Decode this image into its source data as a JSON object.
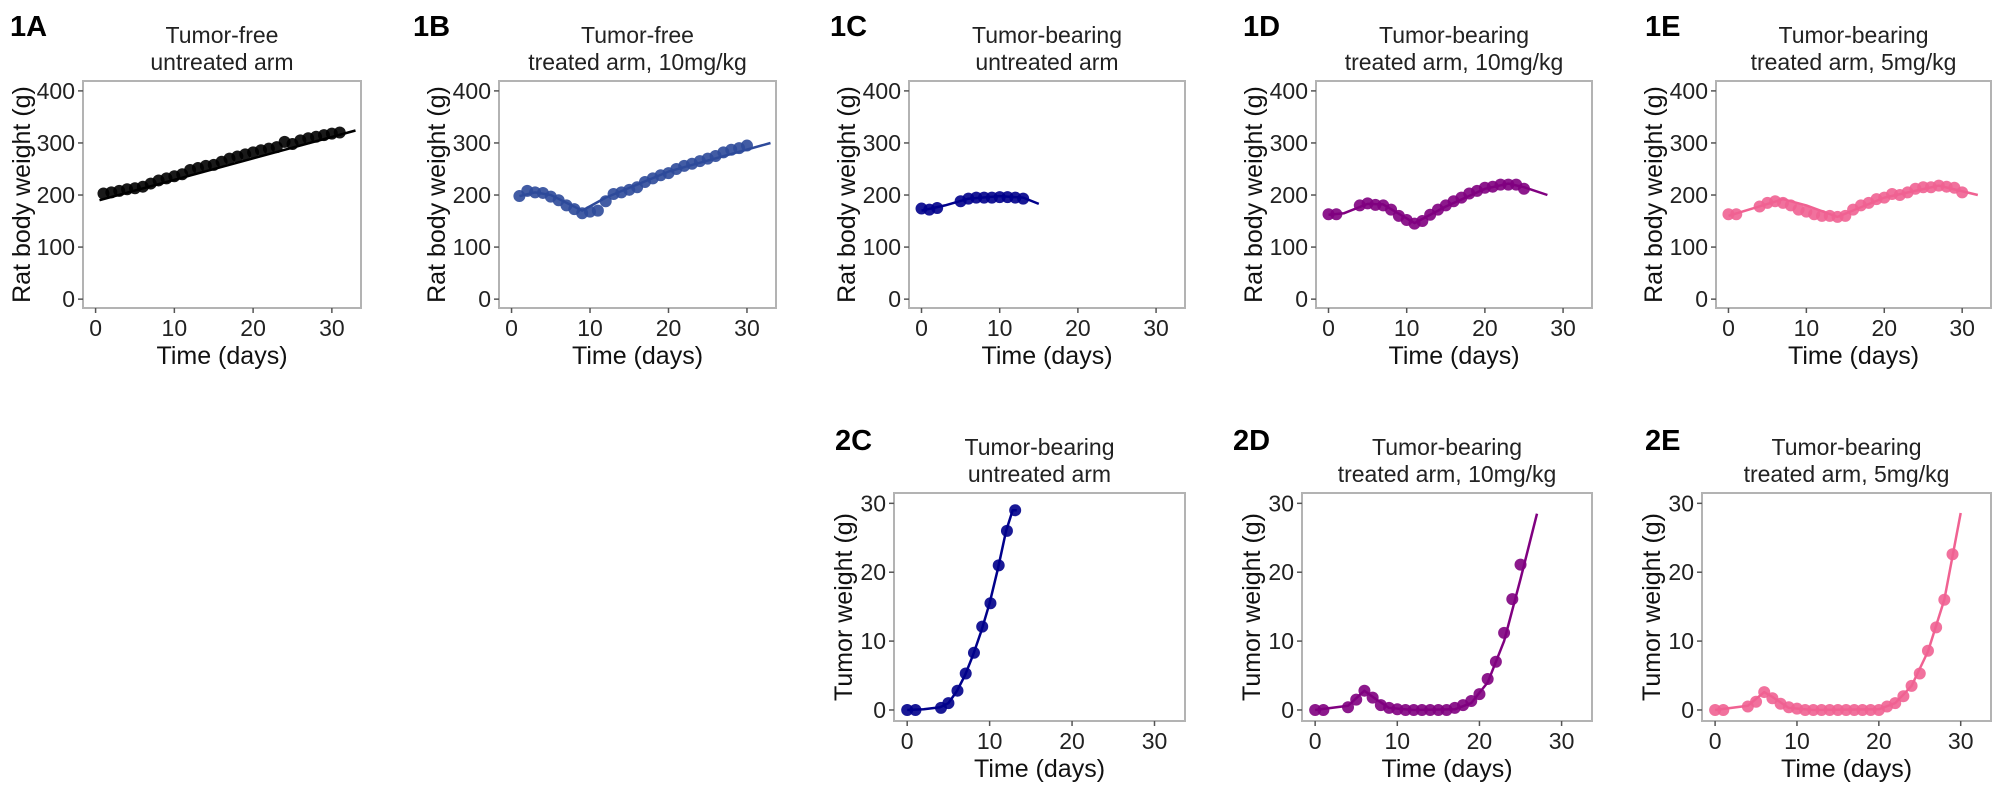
{
  "chart_data": [
    {
      "panel": "1A",
      "type": "scatter",
      "title_lines": [
        "Tumor-free",
        "untreated arm"
      ],
      "xlabel": "Time (days)",
      "ylabel": "Rat body weight (g)",
      "xlim": [
        -1.6,
        33.7
      ],
      "ylim": [
        -17,
        419
      ],
      "xticks": [
        0,
        10,
        20,
        30
      ],
      "yticks": [
        0,
        100,
        200,
        300,
        400
      ],
      "grid": false,
      "color": "#000000",
      "points": {
        "x": [
          1,
          2,
          3,
          4,
          5,
          6,
          7,
          8,
          9,
          10,
          11,
          12,
          13,
          14,
          15,
          16,
          17,
          18,
          19,
          20,
          21,
          22,
          23,
          24,
          25,
          26,
          27,
          28,
          29,
          30,
          31
        ],
        "y": [
          203,
          205,
          208,
          211,
          213,
          216,
          222,
          228,
          232,
          236,
          240,
          248,
          252,
          256,
          258,
          264,
          270,
          274,
          278,
          282,
          286,
          289,
          292,
          302,
          298,
          305,
          309,
          312,
          315,
          318,
          320
        ]
      },
      "fit": {
        "x": [
          0.5,
          33
        ],
        "y": [
          190,
          324
        ]
      }
    },
    {
      "panel": "1B",
      "type": "scatter",
      "title_lines": [
        "Tumor-free",
        "treated arm, 10mg/kg"
      ],
      "xlabel": "Time (days)",
      "ylabel": "Rat body weight (g)",
      "xlim": [
        -1.6,
        33.7
      ],
      "ylim": [
        -17,
        419
      ],
      "xticks": [
        0,
        10,
        20,
        30
      ],
      "yticks": [
        0,
        100,
        200,
        300,
        400
      ],
      "grid": false,
      "color": "#2E4A9A",
      "points": {
        "x": [
          1,
          2,
          3,
          4,
          5,
          6,
          7,
          8,
          9,
          10,
          11,
          12,
          13,
          14,
          15,
          16,
          17,
          18,
          19,
          20,
          21,
          22,
          23,
          24,
          25,
          26,
          27,
          28,
          29,
          30
        ],
        "y": [
          198,
          208,
          205,
          204,
          197,
          190,
          180,
          173,
          165,
          168,
          170,
          188,
          202,
          205,
          210,
          215,
          225,
          232,
          238,
          242,
          250,
          256,
          260,
          265,
          270,
          275,
          282,
          287,
          290,
          295
        ]
      },
      "fit": {
        "x": [
          1,
          3,
          5,
          9,
          12,
          20,
          33
        ],
        "y": [
          198,
          205,
          200,
          170,
          195,
          245,
          300
        ]
      }
    },
    {
      "panel": "1C",
      "type": "scatter",
      "title_lines": [
        "Tumor-bearing",
        "untreated arm"
      ],
      "xlabel": "Time (days)",
      "ylabel": "Rat body weight (g)",
      "xlim": [
        -1.6,
        33.7
      ],
      "ylim": [
        -17,
        419
      ],
      "xticks": [
        0,
        10,
        20,
        30
      ],
      "yticks": [
        0,
        100,
        200,
        300,
        400
      ],
      "grid": false,
      "color": "#00008B",
      "points": {
        "x": [
          0,
          1,
          2,
          5,
          6,
          7,
          8,
          9,
          10,
          11,
          12,
          13
        ],
        "y": [
          174,
          172,
          175,
          188,
          193,
          195,
          195,
          195,
          196,
          196,
          195,
          193
        ]
      },
      "fit": {
        "x": [
          0,
          3,
          6,
          10,
          13,
          15
        ],
        "y": [
          170,
          180,
          193,
          198,
          195,
          183
        ]
      }
    },
    {
      "panel": "1D",
      "type": "scatter",
      "title_lines": [
        "Tumor-bearing",
        "treated arm, 10mg/kg"
      ],
      "xlabel": "Time (days)",
      "ylabel": "Rat body weight (g)",
      "xlim": [
        -1.6,
        33.7
      ],
      "ylim": [
        -17,
        419
      ],
      "xticks": [
        0,
        10,
        20,
        30
      ],
      "yticks": [
        0,
        100,
        200,
        300,
        400
      ],
      "grid": false,
      "color": "#800080",
      "points": {
        "x": [
          0,
          1,
          4,
          5,
          6,
          7,
          8,
          9,
          10,
          11,
          12,
          13,
          14,
          15,
          16,
          17,
          18,
          19,
          20,
          21,
          22,
          23,
          24,
          25
        ],
        "y": [
          163,
          163,
          180,
          184,
          181,
          180,
          172,
          160,
          152,
          145,
          150,
          162,
          172,
          180,
          188,
          195,
          203,
          208,
          214,
          216,
          220,
          220,
          220,
          212
        ]
      },
      "fit": {
        "x": [
          0,
          2,
          5,
          7,
          11,
          15,
          20,
          23,
          25,
          28
        ],
        "y": [
          162,
          165,
          183,
          182,
          146,
          178,
          212,
          222,
          215,
          200
        ]
      }
    },
    {
      "panel": "1E",
      "type": "scatter",
      "title_lines": [
        "Tumor-bearing",
        "treated arm, 5mg/kg"
      ],
      "xlabel": "Time (days)",
      "ylabel": "Rat body weight (g)",
      "xlim": [
        -1.6,
        33.7
      ],
      "ylim": [
        -17,
        419
      ],
      "xticks": [
        0,
        10,
        20,
        30
      ],
      "yticks": [
        0,
        100,
        200,
        300,
        400
      ],
      "grid": false,
      "color": "#F06292",
      "points": {
        "x": [
          0,
          1,
          4,
          5,
          6,
          7,
          8,
          9,
          10,
          11,
          12,
          13,
          14,
          15,
          16,
          17,
          18,
          19,
          20,
          21,
          22,
          23,
          24,
          25,
          26,
          27,
          28,
          29,
          30
        ],
        "y": [
          163,
          163,
          178,
          185,
          188,
          185,
          180,
          172,
          168,
          163,
          160,
          160,
          158,
          160,
          172,
          180,
          185,
          192,
          195,
          202,
          200,
          205,
          212,
          215,
          215,
          218,
          216,
          214,
          205
        ]
      },
      "fit": {
        "x": [
          0,
          7,
          10,
          14,
          20,
          27,
          32
        ],
        "y": [
          160,
          192,
          180,
          158,
          195,
          218,
          200
        ]
      }
    },
    {
      "panel": "2C",
      "type": "scatter",
      "title_lines": [
        "Tumor-bearing",
        "untreated arm"
      ],
      "xlabel": "Time (days)",
      "ylabel": "Tumor weight (g)",
      "xlim": [
        -1.6,
        33.7
      ],
      "ylim": [
        -1.6,
        31.5
      ],
      "xticks": [
        0,
        10,
        20,
        30
      ],
      "yticks": [
        0,
        10,
        20,
        30
      ],
      "grid": false,
      "color": "#00008B",
      "points": {
        "x": [
          0,
          1,
          4.1,
          5,
          6.1,
          7.1,
          8.1,
          9.1,
          10.1,
          11.1,
          12.1,
          13.1
        ],
        "y": [
          0,
          0,
          0.3,
          1,
          2.8,
          5.3,
          8.3,
          12.1,
          15.5,
          21,
          26,
          29
        ]
      },
      "fit": {
        "x": [
          0,
          2,
          4,
          5,
          6,
          7,
          8,
          9,
          10,
          11,
          12,
          12.8,
          13.3
        ],
        "y": [
          0,
          0.1,
          0.4,
          1,
          2.7,
          5,
          8,
          11.5,
          15.5,
          20.5,
          26,
          29,
          29
        ]
      }
    },
    {
      "panel": "2D",
      "type": "scatter",
      "title_lines": [
        "Tumor-bearing",
        "treated arm, 10mg/kg"
      ],
      "xlabel": "Time (days)",
      "ylabel": "Tumor weight (g)",
      "xlim": [
        -1.6,
        33.7
      ],
      "ylim": [
        -1.6,
        31.5
      ],
      "xticks": [
        0,
        10,
        20,
        30
      ],
      "yticks": [
        0,
        10,
        20,
        30
      ],
      "grid": false,
      "color": "#800080",
      "points": {
        "x": [
          0,
          1,
          4,
          5,
          6,
          7,
          8,
          9,
          10,
          11,
          12,
          13,
          14,
          15,
          16,
          17,
          18,
          19,
          20,
          21,
          22,
          23,
          24,
          25
        ],
        "y": [
          0,
          0,
          0.4,
          1.5,
          2.8,
          1.8,
          0.7,
          0.3,
          0.1,
          0,
          0,
          0,
          0,
          0,
          0,
          0.3,
          0.7,
          1.3,
          2.3,
          4.5,
          7,
          11.2,
          16.1,
          21.1
        ]
      },
      "fit": {
        "x": [
          0,
          4,
          6,
          7,
          9,
          12,
          17,
          19,
          21,
          23,
          25,
          27
        ],
        "y": [
          0,
          0.6,
          2.8,
          1.9,
          0.3,
          0,
          0.1,
          1,
          4,
          10,
          19,
          28.5
        ]
      }
    },
    {
      "panel": "2E",
      "type": "scatter",
      "title_lines": [
        "Tumor-bearing",
        "treated arm, 5mg/kg"
      ],
      "xlabel": "Time (days)",
      "ylabel": "Tumor weight (g)",
      "xlim": [
        -1.6,
        33.7
      ],
      "ylim": [
        -1.6,
        31.5
      ],
      "xticks": [
        0,
        10,
        20,
        30
      ],
      "yticks": [
        0,
        10,
        20,
        30
      ],
      "grid": false,
      "color": "#F06292",
      "points": {
        "x": [
          0,
          1,
          4,
          5,
          6,
          7,
          8,
          9,
          10,
          11,
          12,
          13,
          14,
          15,
          16,
          17,
          18,
          19,
          20,
          21,
          22,
          23,
          24,
          25,
          26,
          27,
          28,
          29
        ],
        "y": [
          0,
          0,
          0.5,
          1.2,
          2.6,
          1.7,
          0.9,
          0.4,
          0.2,
          0,
          0,
          0,
          0,
          0,
          0,
          0,
          0,
          0,
          0,
          0.5,
          1,
          2,
          3.5,
          5.3,
          8.6,
          12,
          16,
          22.6
        ]
      },
      "fit": {
        "x": [
          0,
          4,
          6,
          7,
          9,
          12,
          20,
          22,
          24,
          26,
          28,
          30
        ],
        "y": [
          0,
          0.6,
          2.6,
          1.9,
          0.3,
          0,
          0.1,
          1,
          3.5,
          8.5,
          16,
          28.6
        ]
      }
    }
  ]
}
